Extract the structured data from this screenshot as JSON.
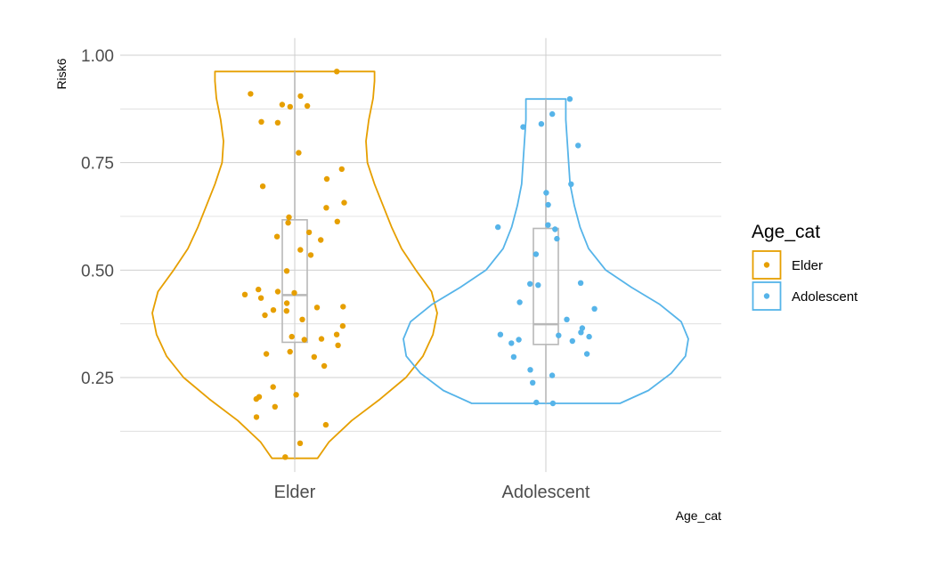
{
  "chart_data": {
    "type": "violin",
    "title": "",
    "xlabel": "Age_cat",
    "ylabel": "Risk6",
    "ylim": [
      0.03,
      1.04
    ],
    "yticks": [
      0.25,
      0.5,
      0.75,
      1.0
    ],
    "ytick_labels": [
      "0.25",
      "0.50",
      "0.75",
      "1.00"
    ],
    "grid": true,
    "categories": [
      "Elder",
      "Adolescent"
    ],
    "legend": {
      "title": "Age_cat",
      "placement": "right",
      "items": [
        "Elder",
        "Adolescent"
      ]
    },
    "series": [
      {
        "name": "Elder",
        "color": "#E69F00",
        "box": {
          "min": 0.062,
          "q1": 0.332,
          "median": 0.442,
          "q3": 0.617,
          "max": 0.962
        },
        "density": [
          [
            0.062,
            0.16
          ],
          [
            0.1,
            0.24
          ],
          [
            0.15,
            0.4
          ],
          [
            0.2,
            0.6
          ],
          [
            0.25,
            0.78
          ],
          [
            0.3,
            0.9
          ],
          [
            0.35,
            0.97
          ],
          [
            0.4,
            1.0
          ],
          [
            0.45,
            0.96
          ],
          [
            0.5,
            0.85
          ],
          [
            0.55,
            0.75
          ],
          [
            0.6,
            0.68
          ],
          [
            0.65,
            0.62
          ],
          [
            0.7,
            0.56
          ],
          [
            0.75,
            0.51
          ],
          [
            0.8,
            0.5
          ],
          [
            0.85,
            0.52
          ],
          [
            0.9,
            0.55
          ],
          [
            0.94,
            0.56
          ],
          [
            0.962,
            0.56
          ]
        ],
        "points": [
          0.962,
          0.91,
          0.905,
          0.885,
          0.88,
          0.882,
          0.845,
          0.843,
          0.773,
          0.735,
          0.712,
          0.695,
          0.657,
          0.645,
          0.623,
          0.613,
          0.61,
          0.588,
          0.578,
          0.57,
          0.547,
          0.535,
          0.498,
          0.455,
          0.45,
          0.447,
          0.443,
          0.435,
          0.423,
          0.415,
          0.413,
          0.407,
          0.405,
          0.395,
          0.385,
          0.37,
          0.35,
          0.345,
          0.34,
          0.338,
          0.325,
          0.31,
          0.305,
          0.298,
          0.277,
          0.228,
          0.21,
          0.205,
          0.2,
          0.182,
          0.158,
          0.14,
          0.097,
          0.065
        ]
      },
      {
        "name": "Adolescent",
        "color": "#56B4E9",
        "box": {
          "min": 0.19,
          "q1": 0.327,
          "median": 0.374,
          "q3": 0.597,
          "max": 0.898
        },
        "density": [
          [
            0.19,
            0.52
          ],
          [
            0.22,
            0.72
          ],
          [
            0.26,
            0.88
          ],
          [
            0.3,
            0.98
          ],
          [
            0.34,
            1.0
          ],
          [
            0.38,
            0.95
          ],
          [
            0.42,
            0.8
          ],
          [
            0.46,
            0.6
          ],
          [
            0.5,
            0.42
          ],
          [
            0.55,
            0.3
          ],
          [
            0.6,
            0.24
          ],
          [
            0.65,
            0.2
          ],
          [
            0.7,
            0.17
          ],
          [
            0.75,
            0.16
          ],
          [
            0.8,
            0.15
          ],
          [
            0.85,
            0.14
          ],
          [
            0.898,
            0.14
          ]
        ],
        "points": [
          0.898,
          0.863,
          0.84,
          0.833,
          0.79,
          0.7,
          0.68,
          0.652,
          0.605,
          0.6,
          0.595,
          0.573,
          0.537,
          0.47,
          0.468,
          0.465,
          0.425,
          0.41,
          0.385,
          0.365,
          0.355,
          0.35,
          0.348,
          0.345,
          0.338,
          0.335,
          0.33,
          0.305,
          0.298,
          0.268,
          0.255,
          0.238,
          0.192,
          0.19
        ]
      }
    ]
  }
}
